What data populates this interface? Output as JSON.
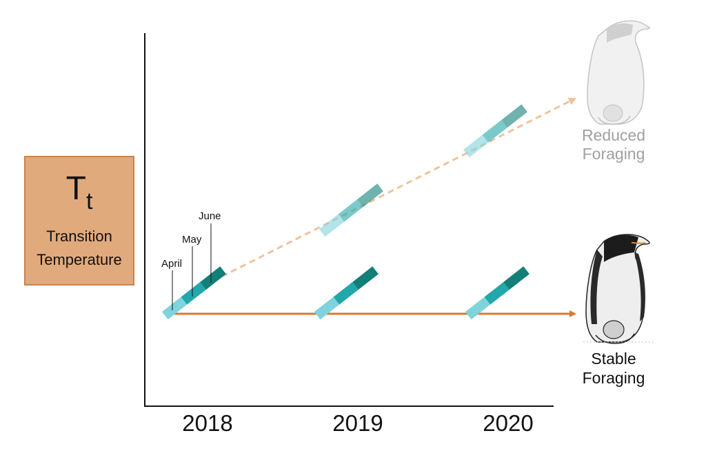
{
  "y_axis": {
    "symbol": "T",
    "symbol_sub": "t",
    "label_line1": "Transition",
    "label_line2": "Temperature"
  },
  "x_ticks": [
    "2018",
    "2019",
    "2020"
  ],
  "months": [
    "April",
    "May",
    "June"
  ],
  "outcomes": {
    "reduced_line1": "Reduced",
    "reduced_line2": "Foraging",
    "stable_line1": "Stable",
    "stable_line2": "Foraging"
  },
  "colors": {
    "box_fill": "#e1aa7d",
    "box_border": "#c9824b",
    "stable_arrow": "#d97a30",
    "reduced_arrow": "#eec39e",
    "april": "#7fd3dc",
    "may": "#22a7aa",
    "june": "#127f78",
    "faded_text": "#a0a0a0",
    "dark_text": "#111111"
  },
  "icons": [
    "emperor-penguin-faded-icon",
    "emperor-penguin-icon"
  ]
}
